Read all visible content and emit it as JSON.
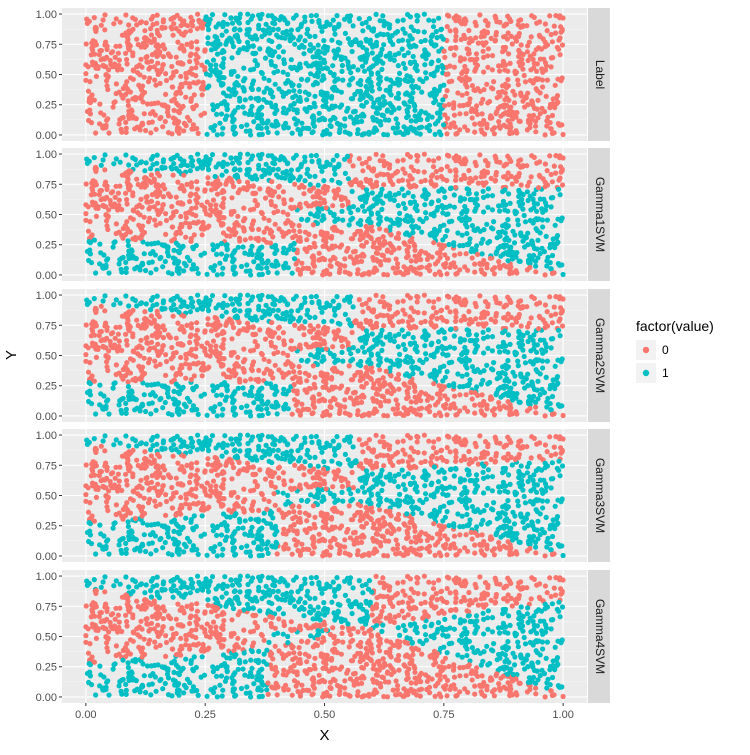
{
  "chart_data": {
    "type": "scatter",
    "title": "",
    "xlabel": "X",
    "ylabel": "Y",
    "xlim": [
      -0.05,
      1.05
    ],
    "ylim": [
      -0.05,
      1.05
    ],
    "x_ticks": [
      "0.00",
      "0.25",
      "0.50",
      "0.75",
      "1.00"
    ],
    "x_tick_values": [
      0,
      0.25,
      0.5,
      0.75,
      1.0
    ],
    "y_ticks": [
      "0.00",
      "0.25",
      "0.50",
      "0.75",
      "1.00"
    ],
    "y_tick_values": [
      0,
      0.25,
      0.5,
      0.75,
      1.0
    ],
    "grid": true,
    "legend": {
      "title": "factor(value)",
      "position": "right",
      "entries": [
        {
          "label": "0",
          "color": "#F8766D"
        },
        {
          "label": "1",
          "color": "#00BFC4"
        }
      ]
    },
    "points_per_panel": 1800,
    "panels": [
      {
        "name": "Label",
        "description_rule": "vertical bands",
        "class1_when": "0.25 < x < 0.75"
      },
      {
        "name": "Gamma1SVM",
        "boundaries": {
          "upper": [
            [
              0.0,
              0.9
            ],
            [
              0.55,
              0.72
            ],
            [
              1.0,
              0.72
            ]
          ],
          "lower": [
            [
              0.0,
              0.3
            ],
            [
              0.42,
              0.25
            ],
            [
              0.58,
              0.42
            ],
            [
              1.0,
              0.0
            ]
          ],
          "upper_cut_x": 0.55,
          "lower_cut_x": 0.44
        }
      },
      {
        "name": "Gamma2SVM",
        "boundaries": {
          "upper": [
            [
              0.0,
              0.92
            ],
            [
              0.55,
              0.72
            ],
            [
              1.0,
              0.72
            ]
          ],
          "lower": [
            [
              0.0,
              0.28
            ],
            [
              0.44,
              0.28
            ],
            [
              0.58,
              0.42
            ],
            [
              1.0,
              0.02
            ]
          ],
          "upper_cut_x": 0.56,
          "lower_cut_x": 0.43
        }
      },
      {
        "name": "Gamma3SVM",
        "boundaries": {
          "upper": [
            [
              0.0,
              0.92
            ],
            [
              0.57,
              0.7
            ],
            [
              1.0,
              0.8
            ]
          ],
          "lower": [
            [
              0.0,
              0.28
            ],
            [
              0.4,
              0.38
            ],
            [
              0.57,
              0.45
            ],
            [
              1.0,
              0.0
            ]
          ],
          "upper_cut_x": 0.57,
          "lower_cut_x": 0.4
        }
      },
      {
        "name": "Gamma4SVM",
        "boundaries": {
          "upper": [
            [
              0.0,
              0.9
            ],
            [
              0.58,
              0.58
            ],
            [
              1.0,
              0.8
            ]
          ],
          "lower": [
            [
              0.0,
              0.28
            ],
            [
              0.38,
              0.4
            ],
            [
              0.58,
              0.58
            ],
            [
              1.0,
              0.02
            ]
          ],
          "upper_cut_x": 0.6,
          "lower_cut_x": 0.38
        }
      }
    ]
  }
}
